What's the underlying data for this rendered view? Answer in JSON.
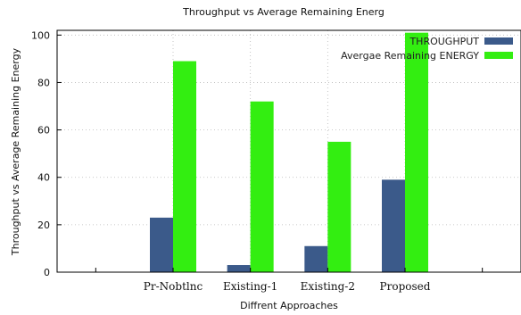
{
  "chart_data": {
    "type": "bar",
    "title": "Throughput  vs Average Remaining Energ",
    "xlabel": "Diffrent Approaches",
    "ylabel": "Throughput  vs Average Remaining Energy",
    "categories": [
      "",
      "Pr-Nobtlnc",
      "Existing-1",
      "Existing-2",
      "Proposed",
      ""
    ],
    "series": [
      {
        "name": "THROUGHPUT",
        "color": "#3b5a8a",
        "values": [
          null,
          23,
          3,
          11,
          39,
          null
        ]
      },
      {
        "name": "Avergae Remaining ENERGY",
        "color": "#33ee11",
        "values": [
          null,
          89,
          72,
          55,
          101,
          null
        ]
      }
    ],
    "ylim": [
      0,
      102
    ],
    "yticks": [
      0,
      20,
      40,
      60,
      80,
      100
    ],
    "grid": true,
    "legend": "top-right"
  }
}
